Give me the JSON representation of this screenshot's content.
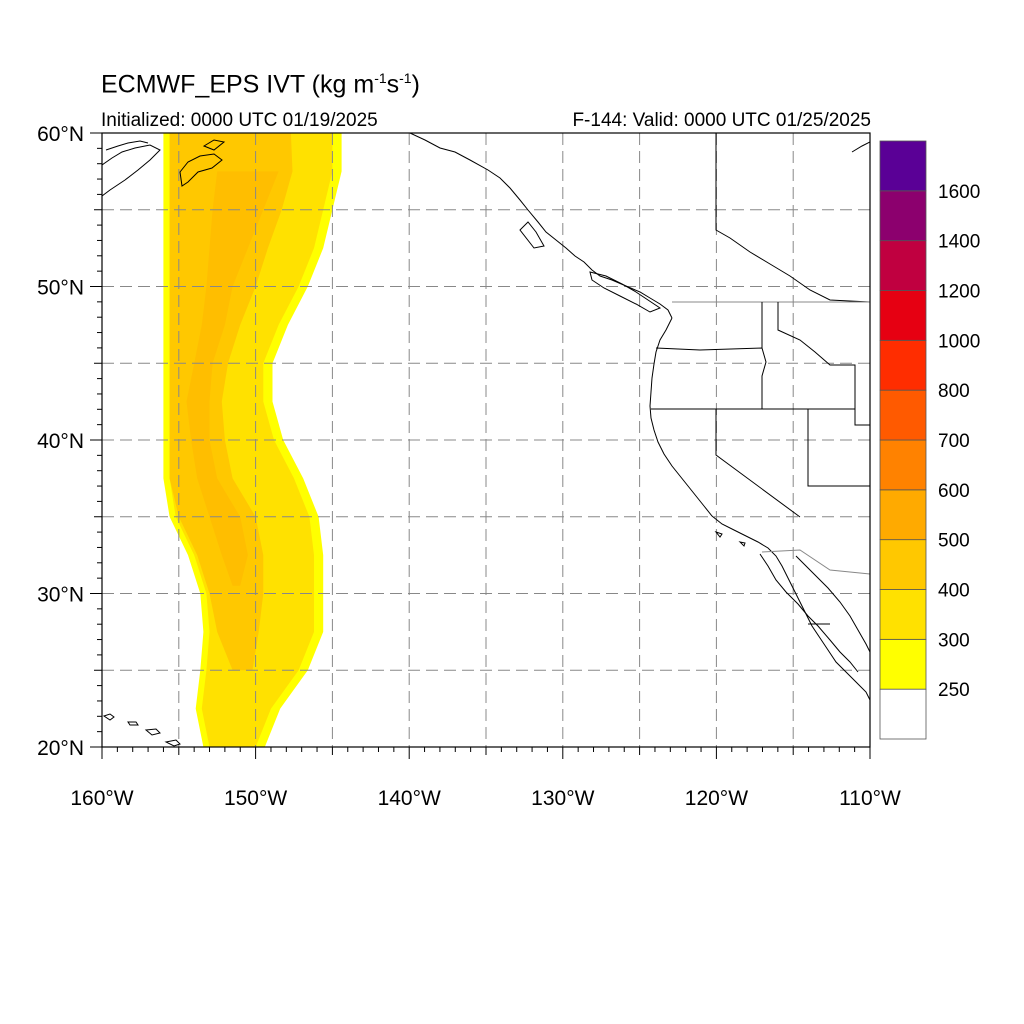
{
  "title": {
    "main": "ECMWF_EPS IVT (kg m",
    "exp1": "-1",
    "mid": "s",
    "exp2": "-1",
    "end": ")"
  },
  "subtitle": {
    "left": "Initialized: 0000 UTC 01/19/2025",
    "right": "F-144: Valid: 0000 UTC 01/25/2025"
  },
  "map": {
    "lon_range": [
      -160,
      -110
    ],
    "lat_range": [
      20,
      60
    ],
    "lon_labels": [
      "160°W",
      "150°W",
      "140°W",
      "130°W",
      "120°W",
      "110°W"
    ],
    "lat_labels": [
      "20°N",
      "30°N",
      "40°N",
      "50°N",
      "60°N"
    ],
    "grid": "dashed every 5°",
    "variable": "IVT",
    "units": "kg m-1 s-1"
  },
  "colorbar": {
    "labels": [
      "250",
      "300",
      "400",
      "500",
      "600",
      "700",
      "800",
      "1000",
      "1200",
      "1400",
      "1600"
    ],
    "colors": [
      "#ffffff",
      "#ffff00",
      "#ffe100",
      "#ffc800",
      "#ffaa00",
      "#ff8200",
      "#ff5a00",
      "#ff2d00",
      "#e60012",
      "#c00040",
      "#8c006e",
      "#5a0096"
    ]
  },
  "ivt_plume": {
    "band_300": [
      [
        60,
        -155.6,
        -145.0
      ],
      [
        57.5,
        -155.6,
        -145.0
      ],
      [
        55,
        -155.6,
        -145.6
      ],
      [
        52.5,
        -155.6,
        -146.2
      ],
      [
        50,
        -155.6,
        -147.2
      ],
      [
        47.5,
        -155.6,
        -148.5
      ],
      [
        45,
        -155.6,
        -149.5
      ],
      [
        42.5,
        -155.6,
        -149.5
      ],
      [
        40,
        -155.6,
        -148.8
      ],
      [
        37.5,
        -155.6,
        -147.5
      ],
      [
        35,
        -155.2,
        -146.5
      ],
      [
        32.5,
        -154.0,
        -146.2
      ],
      [
        30,
        -153.2,
        -146.2
      ],
      [
        27.5,
        -153.0,
        -146.2
      ],
      [
        25,
        -153.2,
        -147.2
      ],
      [
        22.5,
        -153.5,
        -149.0
      ],
      [
        20,
        -153.0,
        -150.0
      ]
    ],
    "band_400": [
      [
        60,
        -155.6,
        -147.7
      ],
      [
        57.5,
        -155.6,
        -147.6
      ],
      [
        55,
        -155.6,
        -148.3
      ],
      [
        52.5,
        -155.6,
        -149.2
      ],
      [
        50,
        -155.6,
        -150.0
      ],
      [
        47.5,
        -155.6,
        -151.0
      ],
      [
        45,
        -155.6,
        -151.8
      ],
      [
        42.5,
        -155.6,
        -152.2
      ],
      [
        40,
        -155.6,
        -152.0
      ],
      [
        37.5,
        -155.6,
        -151.5
      ],
      [
        35,
        -155.0,
        -150.0
      ],
      [
        32.5,
        -153.8,
        -149.5
      ],
      [
        30,
        -153.0,
        -149.5
      ],
      [
        27.5,
        -152.5,
        -149.8
      ],
      [
        25,
        -151.5,
        -150.2
      ]
    ],
    "band_500": [
      [
        57.5,
        -152.5,
        -148.5
      ],
      [
        55,
        -152.8,
        -149.5
      ],
      [
        52.5,
        -153.0,
        -150.5
      ],
      [
        50,
        -153.2,
        -151.5
      ],
      [
        47.5,
        -153.5,
        -152.0
      ],
      [
        45,
        -154.0,
        -152.8
      ],
      [
        42.5,
        -154.5,
        -153.0
      ],
      [
        40,
        -154.2,
        -153.0
      ],
      [
        37.5,
        -153.8,
        -152.5
      ],
      [
        35,
        -153.0,
        -151.0
      ],
      [
        32.5,
        -152.2,
        -150.5
      ],
      [
        30.5,
        -151.5,
        -151.0
      ]
    ]
  }
}
